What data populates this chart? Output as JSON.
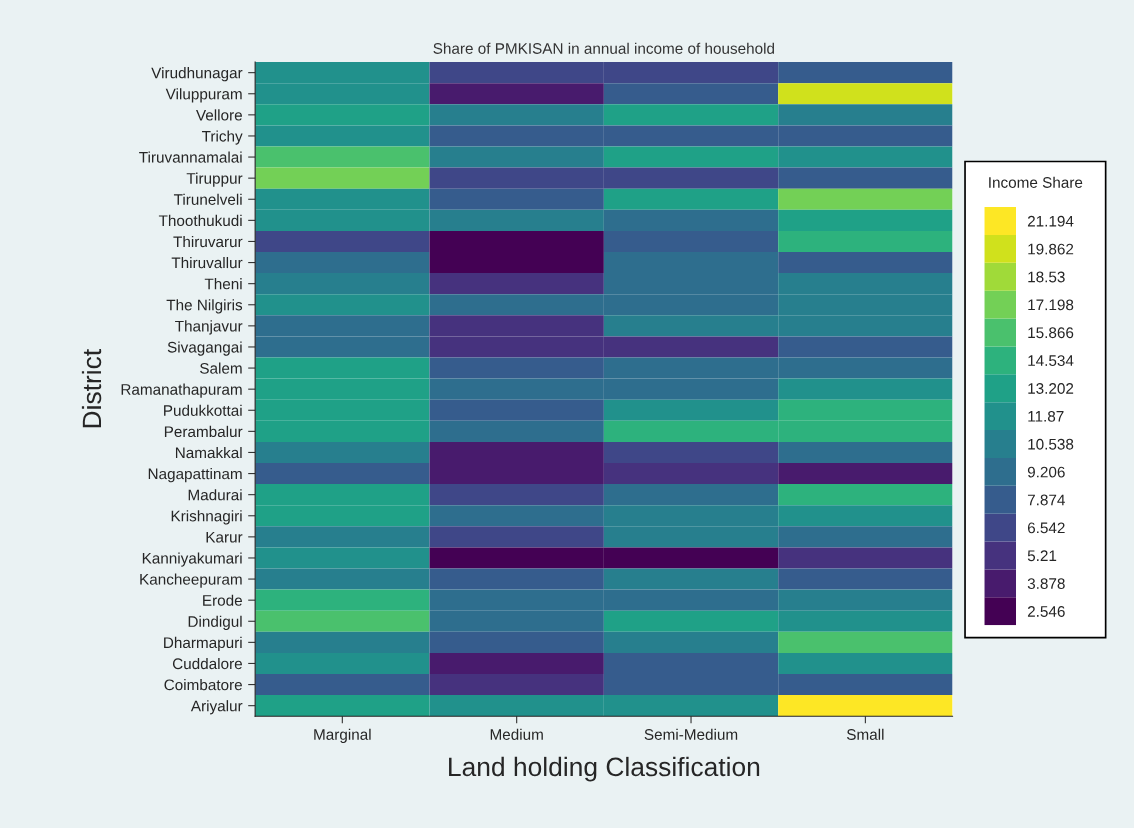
{
  "chart_data": {
    "type": "heatmap",
    "title": "Share of PMKISAN in annual income of household",
    "xlabel": "Land holding Classification",
    "ylabel": "District",
    "clabel": "Income Share",
    "categories": [
      "Marginal",
      "Medium",
      "Semi-Medium",
      "Small"
    ],
    "y_categories": [
      "Virudhunagar",
      "Viluppuram",
      "Vellore",
      "Trichy",
      "Tiruvannamalai",
      "Tiruppur",
      "Tirunelveli",
      "Thoothukudi",
      "Thiruvarur",
      "Thiruvallur",
      "Theni",
      "The Nilgiris",
      "Thanjavur",
      "Sivagangai",
      "Salem",
      "Ramanathapuram",
      "Pudukkottai",
      "Perambalur",
      "Namakkal",
      "Nagapattinam",
      "Madurai",
      "Krishnagiri",
      "Karur",
      "Kanniyakumari",
      "Kancheepuram",
      "Erode",
      "Dindigul",
      "Dharmapuri",
      "Cuddalore",
      "Coimbatore",
      "Ariyalur"
    ],
    "cells": [
      [
        11.87,
        6.542,
        6.542,
        7.874
      ],
      [
        11.87,
        3.878,
        7.874,
        19.862
      ],
      [
        13.202,
        10.538,
        13.202,
        10.538
      ],
      [
        11.87,
        7.874,
        7.874,
        7.874
      ],
      [
        15.866,
        10.538,
        13.202,
        11.87
      ],
      [
        17.198,
        6.542,
        6.542,
        7.874
      ],
      [
        11.87,
        7.874,
        13.202,
        17.198
      ],
      [
        11.87,
        10.538,
        9.206,
        13.202
      ],
      [
        6.542,
        2.546,
        7.874,
        14.534
      ],
      [
        9.206,
        2.546,
        9.206,
        7.874
      ],
      [
        10.538,
        5.21,
        9.206,
        10.538
      ],
      [
        11.87,
        9.206,
        9.206,
        10.538
      ],
      [
        9.206,
        5.21,
        10.538,
        10.538
      ],
      [
        9.206,
        5.21,
        5.21,
        7.874
      ],
      [
        13.202,
        7.874,
        9.206,
        9.206
      ],
      [
        13.202,
        9.206,
        9.206,
        11.87
      ],
      [
        13.202,
        7.874,
        11.87,
        14.534
      ],
      [
        13.202,
        9.206,
        14.534,
        14.534
      ],
      [
        10.538,
        3.878,
        6.542,
        9.206
      ],
      [
        7.874,
        3.878,
        5.21,
        3.878
      ],
      [
        13.202,
        6.542,
        9.206,
        14.534
      ],
      [
        13.202,
        9.206,
        10.538,
        11.87
      ],
      [
        10.538,
        6.542,
        10.538,
        9.206
      ],
      [
        11.87,
        2.546,
        2.546,
        5.21
      ],
      [
        10.538,
        7.874,
        10.538,
        7.874
      ],
      [
        14.534,
        9.206,
        9.206,
        10.538
      ],
      [
        15.866,
        9.206,
        13.202,
        11.87
      ],
      [
        10.538,
        7.874,
        10.538,
        15.866
      ],
      [
        11.87,
        3.878,
        7.874,
        11.87
      ],
      [
        7.874,
        5.21,
        7.874,
        7.874
      ],
      [
        13.202,
        11.87,
        11.87,
        21.194
      ]
    ],
    "clim": [
      1.88,
      21.86
    ],
    "cticks": [
      2.546,
      3.878,
      5.21,
      6.542,
      7.874,
      9.206,
      10.538,
      11.87,
      13.202,
      14.534,
      15.866,
      17.198,
      18.53,
      19.862,
      21.194
    ]
  }
}
